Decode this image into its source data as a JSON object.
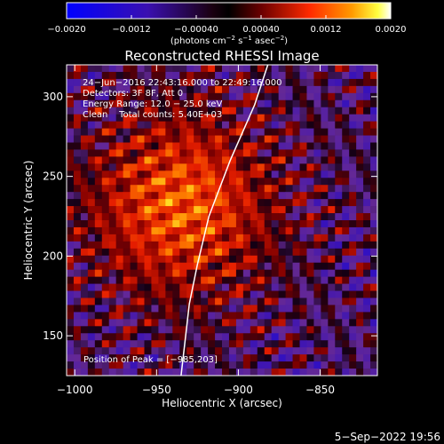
{
  "chart_data": {
    "type": "heatmap",
    "title": "Reconstructed RHESSI Image",
    "xlabel": "Heliocentric X (arcsec)",
    "ylabel": "Heliocentric Y (arcsec)",
    "xlim": [
      -1005,
      -815
    ],
    "ylim": [
      125,
      320
    ],
    "x_ticks": [
      -1000,
      -950,
      -900,
      -850
    ],
    "x_tick_labels": [
      "−1000",
      "−950",
      "−900",
      "−850"
    ],
    "y_ticks": [
      150,
      200,
      250,
      300
    ],
    "y_tick_labels": [
      "150",
      "200",
      "250",
      "300"
    ],
    "colorbar": {
      "range": [
        -0.002,
        0.002
      ],
      "ticks": [
        -0.002,
        -0.0012,
        -0.0004,
        0.0004,
        0.0012,
        0.002
      ],
      "tick_labels": [
        "−0.0020",
        "−0.0012",
        "−0.00040",
        "0.00040",
        "0.0012",
        "0.0020"
      ],
      "unit_main": "(photons cm",
      "unit_sup1": "−2",
      "unit_mid": " s",
      "unit_sup2": "−1",
      "unit_end": " asec",
      "unit_sup3": "−2",
      "unit_close": ")"
    },
    "annotations": [
      "24−Jun−2016 22:43:16.000 to 22:49:16.000",
      "Detectors: 3F 8F, Att 0",
      "Energy Range: 12.0 − 25.0 keV",
      "Clean    Total counts: 5.40E+03"
    ],
    "peak_label": "Position of Peak = [−985,203]",
    "peak": [
      -985,
      203
    ],
    "limb_points": [
      [
        -935,
        125
      ],
      [
        -930,
        170
      ],
      [
        -925,
        195
      ],
      [
        -918,
        225
      ],
      [
        -905,
        260
      ],
      [
        -890,
        295
      ],
      [
        -882,
        320
      ]
    ],
    "grid": false
  },
  "footer": {
    "date": "5−Sep−2022 19:56"
  }
}
